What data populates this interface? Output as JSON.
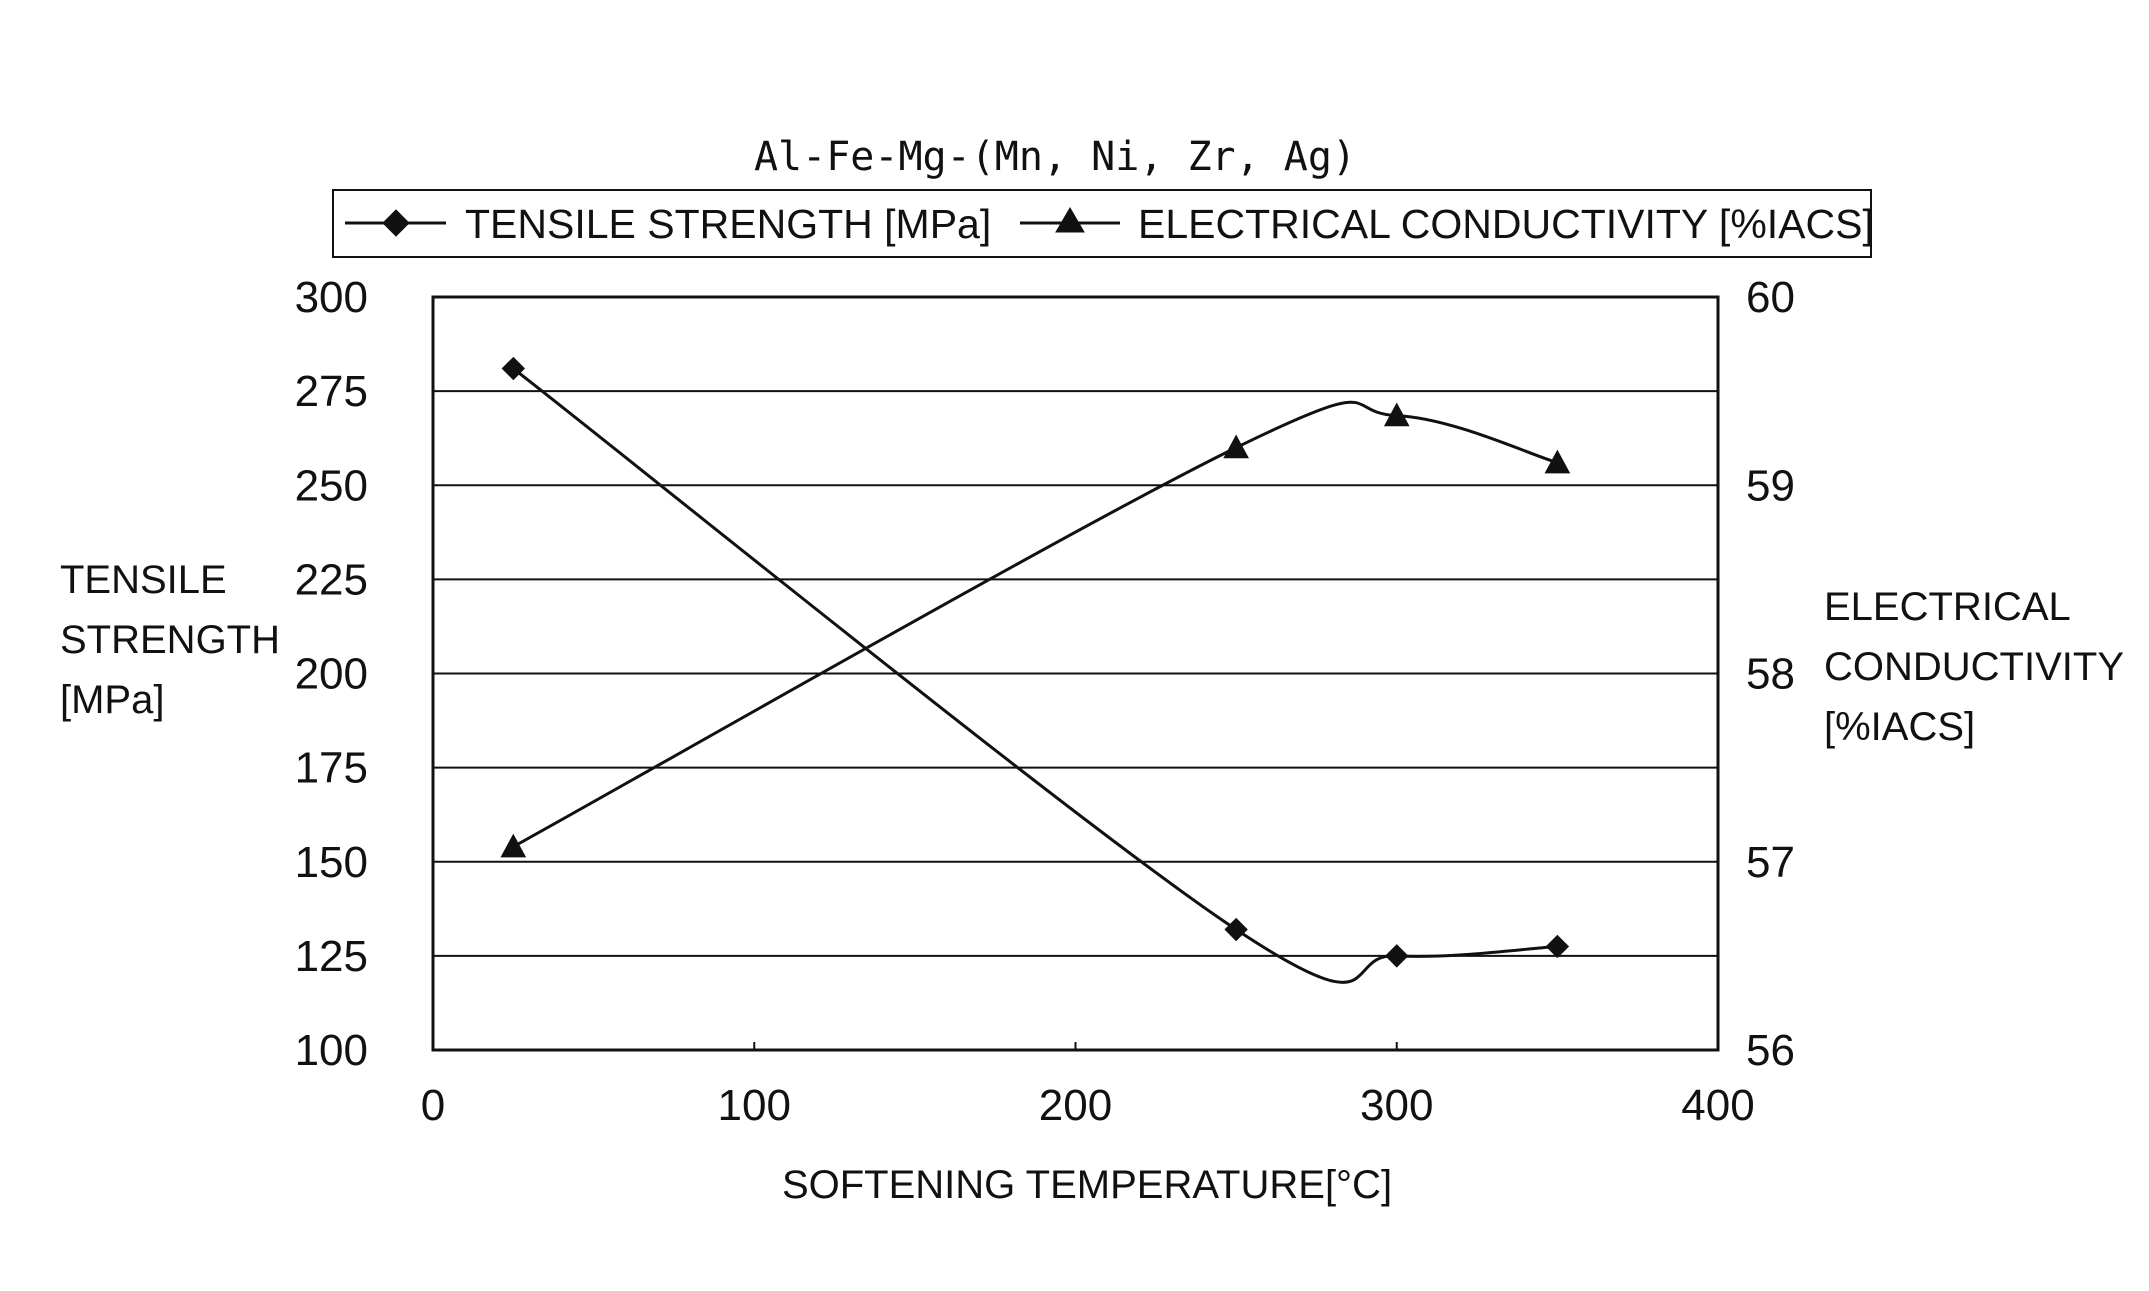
{
  "chart_data": {
    "type": "line",
    "title": "Al-Fe-Mg-(Mn, Ni, Zr, Ag)",
    "xlabel": "SOFTENING TEMPERATURE[°C]",
    "ylabel_left": [
      "TENSILE",
      "STRENGTH",
      "[MPa]"
    ],
    "ylabel_right": [
      "ELECTRICAL",
      "CONDUCTIVITY",
      "[%IACS]"
    ],
    "xlim": [
      0,
      400
    ],
    "ylim_left": [
      100,
      300
    ],
    "ylim_right": [
      56,
      60
    ],
    "x_ticks": [
      "0",
      "100",
      "200",
      "300",
      "400"
    ],
    "y_ticks_left": [
      "100",
      "125",
      "150",
      "175",
      "200",
      "225",
      "250",
      "275",
      "300"
    ],
    "y_ticks_right": [
      "56",
      "57",
      "58",
      "59",
      "60"
    ],
    "grid": true,
    "legend_position": "top",
    "series": [
      {
        "name": "TENSILE STRENGTH [MPa]",
        "axis": "left",
        "marker": "diamond",
        "x": [
          25,
          250,
          300,
          350
        ],
        "y": [
          281,
          132,
          125,
          127.5
        ]
      },
      {
        "name": "ELECTRICAL CONDUCTIVITY [%IACS]",
        "axis": "right",
        "marker": "triangle",
        "x": [
          25,
          250,
          300,
          350
        ],
        "y": [
          57.08,
          59.2,
          59.37,
          59.12
        ]
      }
    ]
  }
}
